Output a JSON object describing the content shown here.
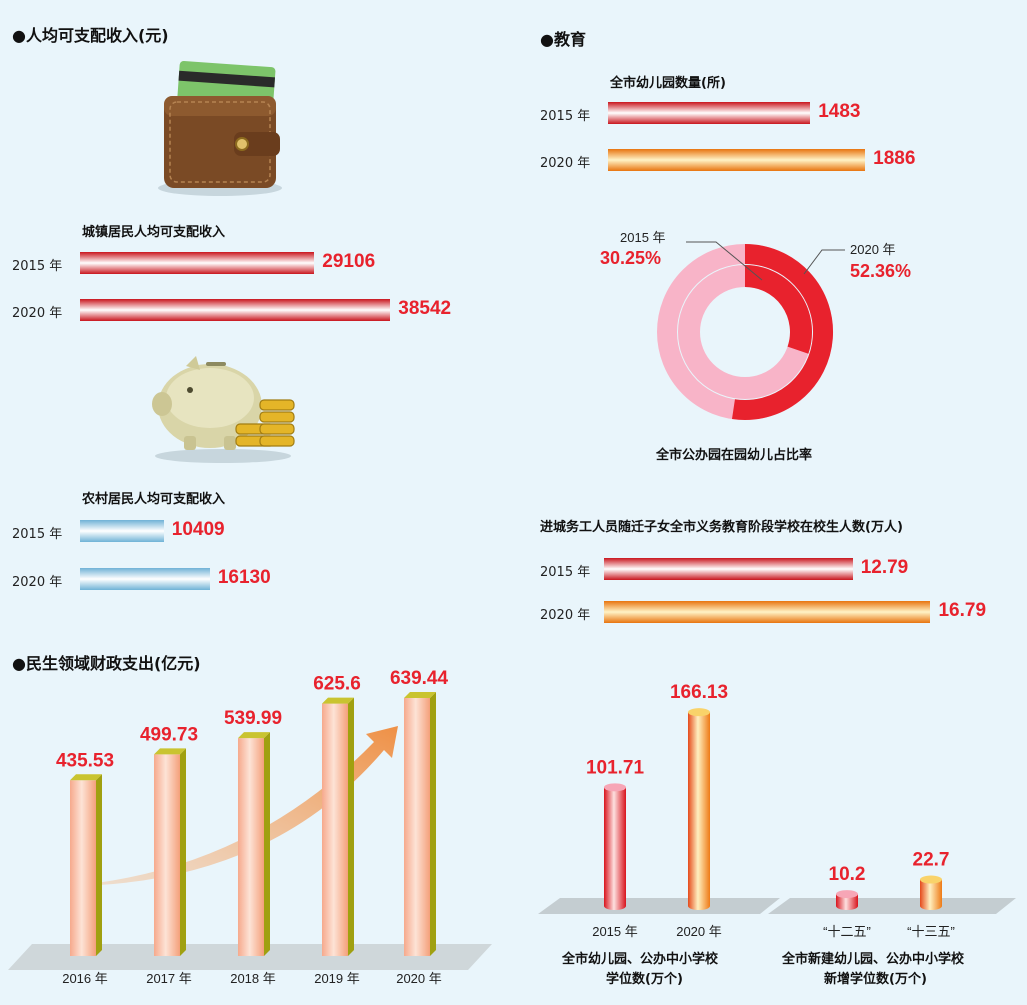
{
  "income": {
    "title": "●人均可支配收入(元)",
    "urban_title": "城镇居民人均可支配收入",
    "rural_title": "农村居民人均可支配收入"
  },
  "education": {
    "title": "●教育",
    "kindergarten_title": "全市幼儿园数量(所)",
    "donut_title": "全市公办园在园幼儿占比率",
    "migrant_title": "进城务工人员随迁子女全市义务教育阶段学校在校生人数(万人)"
  },
  "spending": {
    "title": "●民生领域财政支出(亿元)"
  },
  "seats": {
    "left_title_1": "全市幼儿园、公办中小学校",
    "left_title_2": "学位数(万个)",
    "right_title_1": "全市新建幼儿园、公办中小学校",
    "right_title_2": "新增学位数(万个)"
  },
  "colors": {
    "red": "#e8222d",
    "orange": "#f19320",
    "blue": "#7fc0e2",
    "pink": "#f8b4c8",
    "accent_text": "#e8222d"
  },
  "chart_data": [
    {
      "type": "bar",
      "orientation": "horizontal",
      "id": "urban_income",
      "categories": [
        "2015 年",
        "2020 年"
      ],
      "values": [
        29106,
        38542
      ],
      "xlim": [
        0,
        40000
      ]
    },
    {
      "type": "bar",
      "orientation": "horizontal",
      "id": "rural_income",
      "categories": [
        "2015 年",
        "2020 年"
      ],
      "values": [
        10409,
        16130
      ],
      "xlim": [
        0,
        40000
      ]
    },
    {
      "type": "bar",
      "orientation": "horizontal",
      "id": "kindergartens",
      "categories": [
        "2015 年",
        "2020 年"
      ],
      "values": [
        1483,
        1886
      ],
      "xlim": [
        0,
        2200
      ]
    },
    {
      "type": "pie",
      "subtype": "donut",
      "id": "public_kindergarten_ratio",
      "rings": [
        {
          "label": "2015 年",
          "value_text": "30.25%",
          "value": 30.25
        },
        {
          "label": "2020 年",
          "value_text": "52.36%",
          "value": 52.36
        }
      ]
    },
    {
      "type": "bar",
      "orientation": "horizontal",
      "id": "migrant_students",
      "categories": [
        "2015 年",
        "2020 年"
      ],
      "values": [
        12.79,
        16.79
      ],
      "xlim": [
        0,
        18
      ]
    },
    {
      "type": "bar",
      "orientation": "vertical",
      "id": "welfare_spending",
      "categories": [
        "2016 年",
        "2017 年",
        "2018 年",
        "2019 年",
        "2020 年"
      ],
      "values": [
        435.53,
        499.73,
        539.99,
        625.6,
        639.44
      ],
      "value_labels": [
        "435.53",
        "499.73",
        "539.99",
        "625.6",
        "639.44"
      ],
      "ylim": [
        0,
        700
      ]
    },
    {
      "type": "bar",
      "orientation": "vertical",
      "id": "school_seats",
      "categories": [
        "2015 年",
        "2020 年"
      ],
      "values": [
        101.71,
        166.13
      ],
      "value_labels": [
        "101.71",
        "166.13"
      ],
      "ylim": [
        0,
        180
      ]
    },
    {
      "type": "bar",
      "orientation": "vertical",
      "id": "new_seats",
      "categories": [
        "“十二五”",
        "“十三五”"
      ],
      "values": [
        10.2,
        22.7
      ],
      "value_labels": [
        "10.2",
        "22.7"
      ],
      "ylim": [
        0,
        180
      ]
    }
  ]
}
